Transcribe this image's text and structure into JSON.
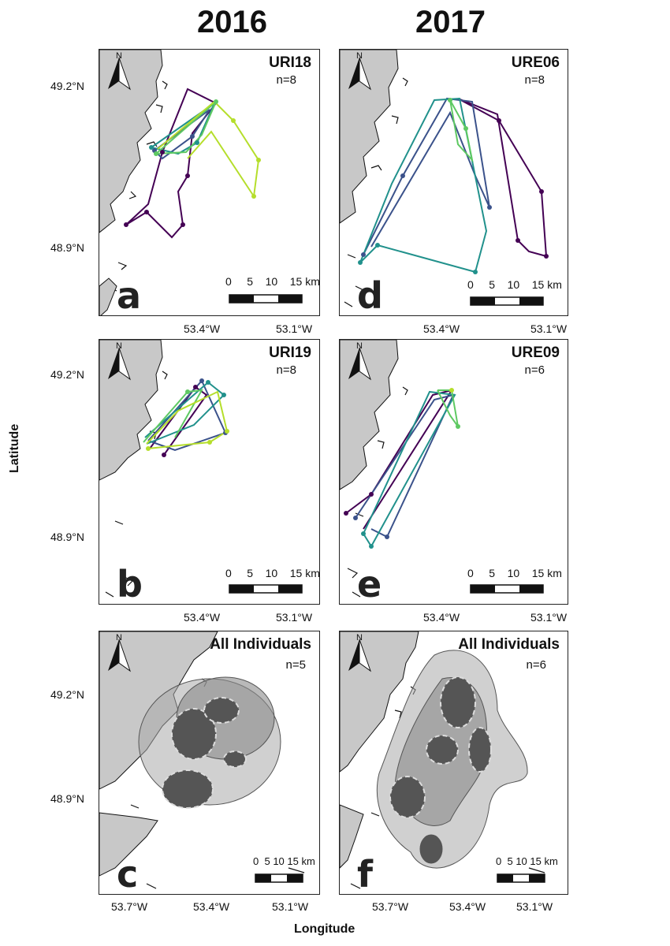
{
  "columns": [
    "2016",
    "2017"
  ],
  "axis": {
    "ylabel": "Latitude",
    "xlabel": "Longitude",
    "lat_ticks": [
      "49.2°N",
      "48.9°N"
    ],
    "lon_ticks_top": [
      "53.4°W",
      "53.1°W"
    ],
    "lon_ticks_bottom": [
      "53.7°W",
      "53.4°W",
      "53.1°W"
    ]
  },
  "north_label": "N",
  "scale": {
    "labels": [
      "0",
      "5",
      "10",
      "15 km"
    ]
  },
  "panels": [
    {
      "letter": "a",
      "title": "URI18",
      "n": "n=8"
    },
    {
      "letter": "b",
      "title": "URI19",
      "n": "n=8"
    },
    {
      "letter": "c",
      "title": "All Individuals",
      "n": "n=5"
    },
    {
      "letter": "d",
      "title": "URE06",
      "n": "n=8"
    },
    {
      "letter": "e",
      "title": "URE09",
      "n": "n=6"
    },
    {
      "letter": "f",
      "title": "All Individuals",
      "n": "n=6"
    }
  ],
  "colors": {
    "land": "#c8c8c8",
    "track_palette": [
      "#440154",
      "#3b528b",
      "#21918c",
      "#5ec962",
      "#b5de2b"
    ],
    "kernel_dark": "#555555",
    "kernel_light": "#a9a9a9"
  }
}
